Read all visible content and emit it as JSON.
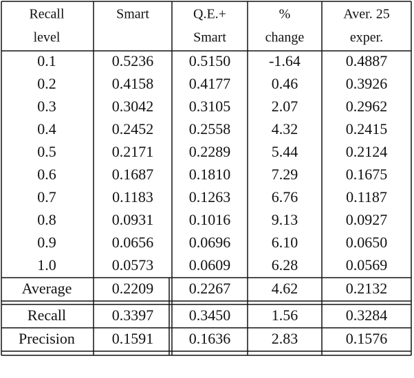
{
  "table": {
    "header": [
      [
        "Recall",
        "level"
      ],
      [
        "Smart"
      ],
      [
        "Q.E.+",
        "Smart"
      ],
      [
        "%",
        "change"
      ],
      [
        "Aver. 25",
        "exper."
      ]
    ],
    "rows": [
      [
        "0.1",
        "0.5236",
        "0.5150",
        "-1.64",
        "0.4887"
      ],
      [
        "0.2",
        "0.4158",
        "0.4177",
        "0.46",
        "0.3926"
      ],
      [
        "0.3",
        "0.3042",
        "0.3105",
        "2.07",
        "0.2962"
      ],
      [
        "0.4",
        "0.2452",
        "0.2558",
        "4.32",
        "0.2415"
      ],
      [
        "0.5",
        "0.2171",
        "0.2289",
        "5.44",
        "0.2124"
      ],
      [
        "0.6",
        "0.1687",
        "0.1810",
        "7.29",
        "0.1675"
      ],
      [
        "0.7",
        "0.1183",
        "0.1263",
        "6.76",
        "0.1187"
      ],
      [
        "0.8",
        "0.0931",
        "0.1016",
        "9.13",
        "0.0927"
      ],
      [
        "0.9",
        "0.0656",
        "0.0696",
        "6.10",
        "0.0650"
      ],
      [
        "1.0",
        "0.0573",
        "0.0609",
        "6.28",
        "0.0569"
      ],
      [
        "Average",
        "0.2209",
        "0.2267",
        "4.62",
        "0.2132"
      ],
      [
        "Recall",
        "0.3397",
        "0.3450",
        "1.56",
        "0.3284"
      ],
      [
        "Precision",
        "0.1591",
        "0.1636",
        "2.83",
        "0.1576"
      ]
    ]
  }
}
